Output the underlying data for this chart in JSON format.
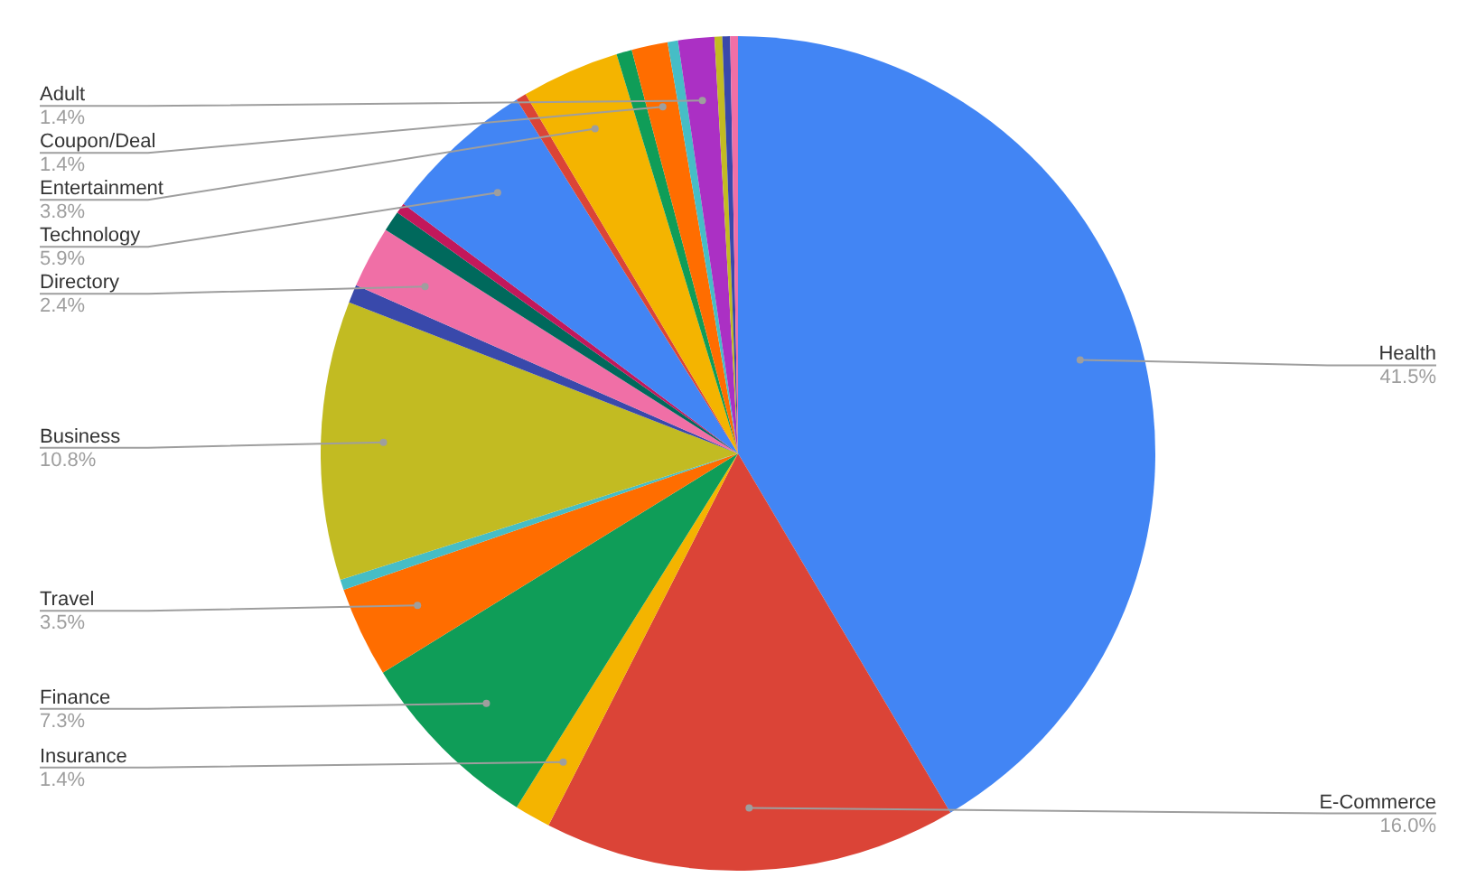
{
  "chart_data": {
    "type": "pie",
    "categories": [
      "Health",
      "E-Commerce",
      "Insurance",
      "Finance",
      "Travel",
      null,
      "Business",
      null,
      "Directory",
      null,
      null,
      "Technology",
      null,
      "Entertainment",
      null,
      "Coupon/Deal",
      null,
      "Adult",
      null,
      null,
      null
    ],
    "values": [
      41.5,
      16.0,
      1.4,
      7.3,
      3.5,
      0.4,
      10.8,
      0.7,
      2.4,
      0.8,
      0.4,
      5.9,
      0.4,
      3.8,
      0.6,
      1.4,
      0.4,
      1.4,
      0.3,
      0.3,
      0.3
    ],
    "value_labels": [
      "41.5%",
      "16.0%",
      "1.4%",
      "7.3%",
      "3.5%",
      null,
      "10.8%",
      null,
      "2.4%",
      null,
      null,
      "5.9%",
      null,
      "3.8%",
      null,
      "1.4%",
      null,
      "1.4%",
      null,
      null,
      null
    ],
    "colors": [
      "#4285f4",
      "#db4437",
      "#f4b400",
      "#0f9d58",
      "#ff6d00",
      "#46bdc6",
      "#c2bb22",
      "#3949ab",
      "#f06fa6",
      "#00695c",
      "#c2185b",
      "#4285f4",
      "#db4437",
      "#f4b400",
      "#0f9d58",
      "#ff6d00",
      "#46bdc6",
      "#ab30c4",
      "#c2bb22",
      "#3949ab",
      "#f06fa6"
    ],
    "legend": false
  }
}
